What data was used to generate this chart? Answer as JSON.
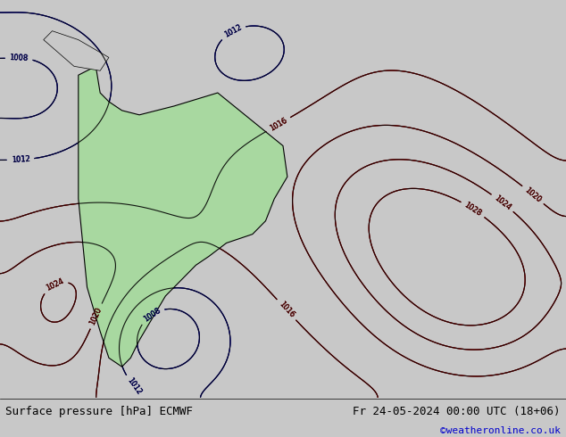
{
  "title_left": "Surface pressure [hPa] ECMWF",
  "title_right": "Fr 24-05-2024 00:00 UTC (18+06)",
  "credit": "©weatheronline.co.uk",
  "bg_color": "#e8e8e8",
  "fig_width": 6.34,
  "fig_height": 4.9,
  "dpi": 100,
  "bottom_bar_color": "#f0f0f0",
  "bottom_bar_height": 0.08,
  "title_fontsize": 9,
  "credit_fontsize": 8,
  "credit_color": "#0000cc"
}
